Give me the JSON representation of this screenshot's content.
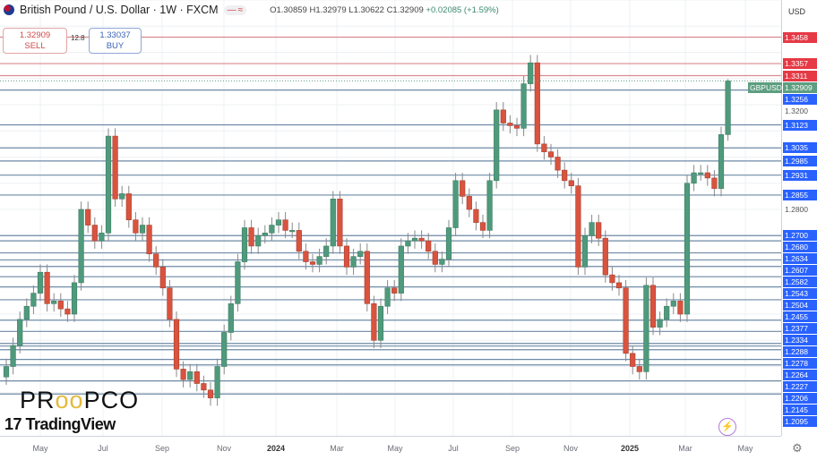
{
  "header": {
    "symbol_title": "British Pound / U.S. Dollar · 1W · FXCM",
    "open": "O1.30859",
    "high": "H1.32979",
    "low": "L1.30622",
    "close": "C1.32909",
    "change": "+0.02085 (+1.59%)"
  },
  "trade": {
    "sell_price": "1.32909",
    "sell_label": "SELL",
    "spread": "12.8",
    "buy_price": "1.33037",
    "buy_label": "BUY"
  },
  "price_axis": {
    "currency": "USD",
    "plain_labels": [
      "1.3200",
      "1.2800"
    ],
    "symbol_label": "GBPUSD",
    "current_price": "1.32909"
  },
  "levels": [
    {
      "price": "1.3458",
      "color": "#e53945"
    },
    {
      "price": "1.3357",
      "color": "#e53945"
    },
    {
      "price": "1.3311",
      "color": "#e53945"
    },
    {
      "price": "1.3256",
      "color": "#2962ff"
    },
    {
      "price": "1.3123",
      "color": "#2962ff"
    },
    {
      "price": "1.3035",
      "color": "#2962ff"
    },
    {
      "price": "1.2985",
      "color": "#2962ff"
    },
    {
      "price": "1.2931",
      "color": "#2962ff"
    },
    {
      "price": "1.2855",
      "color": "#2962ff"
    },
    {
      "price": "1.2700",
      "color": "#2962ff"
    },
    {
      "price": "1.2680",
      "color": "#2962ff"
    },
    {
      "price": "1.2634",
      "color": "#2962ff"
    },
    {
      "price": "1.2607",
      "color": "#2962ff"
    },
    {
      "price": "1.2582",
      "color": "#2962ff"
    },
    {
      "price": "1.2543",
      "color": "#2962ff"
    },
    {
      "price": "1.2504",
      "color": "#2962ff"
    },
    {
      "price": "1.2455",
      "color": "#2962ff"
    },
    {
      "price": "1.2377",
      "color": "#2962ff"
    },
    {
      "price": "1.2334",
      "color": "#2962ff"
    },
    {
      "price": "1.2288",
      "color": "#2962ff"
    },
    {
      "price": "1.2278",
      "color": "#2962ff"
    },
    {
      "price": "1.2264",
      "color": "#2962ff"
    },
    {
      "price": "1.2227",
      "color": "#2962ff"
    },
    {
      "price": "1.2206",
      "color": "#2962ff"
    },
    {
      "price": "1.2145",
      "color": "#2962ff"
    },
    {
      "price": "1.2095",
      "color": "#2962ff"
    }
  ],
  "time_axis": [
    "May",
    "Jul",
    "Sep",
    "Nov",
    "2024",
    "Mar",
    "May",
    "Jul",
    "Sep",
    "Nov",
    "2025",
    "Mar",
    "May"
  ],
  "colors": {
    "up": "#4f9a7c",
    "down": "#d9533f",
    "current": "#5d9e80",
    "grid": "#eef0f3"
  },
  "chart_data": {
    "type": "candlestick",
    "timeframe": "1W",
    "closes": [
      1.22,
      1.228,
      1.238,
      1.243,
      1.248,
      1.256,
      1.244,
      1.245,
      1.242,
      1.24,
      1.252,
      1.28,
      1.274,
      1.268,
      1.271,
      1.308,
      1.284,
      1.286,
      1.276,
      1.271,
      1.274,
      1.263,
      1.258,
      1.25,
      1.238,
      1.219,
      1.215,
      1.218,
      1.2135,
      1.211,
      1.208,
      1.22,
      1.233,
      1.244,
      1.26,
      1.273,
      1.266,
      1.27,
      1.271,
      1.274,
      1.276,
      1.272,
      1.272,
      1.264,
      1.26,
      1.259,
      1.262,
      1.266,
      1.284,
      1.266,
      1.258,
      1.262,
      1.264,
      1.244,
      1.23,
      1.243,
      1.25,
      1.248,
      1.266,
      1.268,
      1.269,
      1.268,
      1.264,
      1.259,
      1.261,
      1.273,
      1.291,
      1.285,
      1.28,
      1.275,
      1.272,
      1.291,
      1.318,
      1.313,
      1.312,
      1.311,
      1.328,
      1.336,
      1.305,
      1.302,
      1.3,
      1.295,
      1.291,
      1.289,
      1.258,
      1.27,
      1.275,
      1.269,
      1.255,
      1.252,
      1.25,
      1.225,
      1.22,
      1.218,
      1.251,
      1.235,
      1.238,
      1.243,
      1.245,
      1.24,
      1.29,
      1.294,
      1.294,
      1.292,
      1.288,
      1.30859,
      1.32909
    ],
    "last_candle": {
      "open": 1.30859,
      "high": 1.32979,
      "low": 1.30622,
      "close": 1.32909
    },
    "ylim": [
      1.208,
      1.362
    ]
  },
  "watermarks": {
    "tradingview": "TradingView",
    "propco": "PROPCO"
  },
  "icons": {
    "bolt": "lightning-icon",
    "gear": "settings-gear-icon"
  }
}
